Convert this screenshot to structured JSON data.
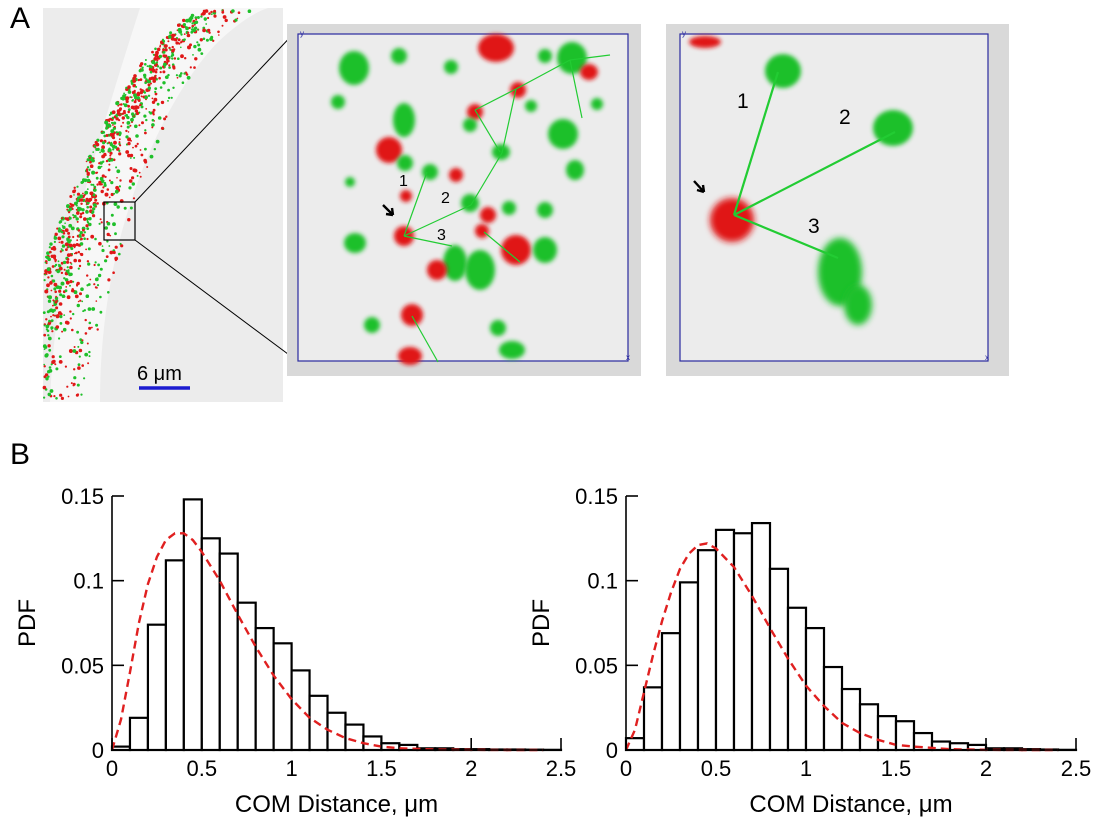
{
  "panels": {
    "a_label": "A",
    "b_label": "B"
  },
  "micrograph": {
    "scale_bar_label": "6 μm",
    "inset1_numbers": [
      "1",
      "2",
      "3"
    ],
    "inset2_numbers": [
      "1",
      "2",
      "3"
    ],
    "colors": {
      "red": "#e01818",
      "green": "#1fc02a",
      "link": "#22cc33",
      "frame": "#2a2aa0",
      "scale_bar": "#1a1ad0"
    }
  },
  "chart_data": [
    {
      "type": "bar",
      "xlabel": "COM Distance, μm",
      "ylabel": "PDF",
      "xlim": [
        0,
        2.5
      ],
      "ylim": [
        0,
        0.15
      ],
      "xticks": [
        "0",
        "0.5",
        "1",
        "1.5",
        "2",
        "2.5"
      ],
      "yticks": [
        "0",
        "0.05",
        "0.1",
        "0.15"
      ],
      "bin_width": 0.1,
      "bin_starts": [
        0,
        0.1,
        0.2,
        0.3,
        0.4,
        0.5,
        0.6,
        0.7,
        0.8,
        0.9,
        1.0,
        1.1,
        1.2,
        1.3,
        1.4,
        1.5,
        1.6,
        1.7,
        1.8,
        1.9,
        2.0,
        2.1,
        2.2,
        2.3,
        2.4
      ],
      "values": [
        0.002,
        0.019,
        0.074,
        0.112,
        0.148,
        0.125,
        0.116,
        0.087,
        0.072,
        0.063,
        0.047,
        0.032,
        0.022,
        0.015,
        0.008,
        0.004,
        0.003,
        0.001,
        0.001,
        0.0005,
        0.0005,
        0.0003,
        0.0003,
        0.0002,
        0.0001
      ],
      "fit": {
        "style": "red dashed",
        "color": "#e02020",
        "x": [
          0,
          0.05,
          0.1,
          0.15,
          0.2,
          0.25,
          0.3,
          0.35,
          0.4,
          0.45,
          0.5,
          0.6,
          0.7,
          0.8,
          0.9,
          1.0,
          1.1,
          1.2,
          1.3,
          1.4,
          1.5,
          1.6,
          1.8,
          2.0,
          2.2,
          2.4
        ],
        "y": [
          0.0,
          0.018,
          0.046,
          0.075,
          0.098,
          0.114,
          0.124,
          0.128,
          0.128,
          0.124,
          0.117,
          0.1,
          0.08,
          0.061,
          0.044,
          0.03,
          0.019,
          0.012,
          0.007,
          0.004,
          0.002,
          0.001,
          0.0003,
          0.0001,
          0.0,
          0.0
        ]
      }
    },
    {
      "type": "bar",
      "xlabel": "COM Distance, μm",
      "ylabel": "PDF",
      "xlim": [
        0,
        2.5
      ],
      "ylim": [
        0,
        0.15
      ],
      "xticks": [
        "0",
        "0.5",
        "1",
        "1.5",
        "2",
        "2.5"
      ],
      "yticks": [
        "0",
        "0.05",
        "0.1",
        "0.15"
      ],
      "bin_width": 0.1,
      "bin_starts": [
        0,
        0.1,
        0.2,
        0.3,
        0.4,
        0.5,
        0.6,
        0.7,
        0.8,
        0.9,
        1.0,
        1.1,
        1.2,
        1.3,
        1.4,
        1.5,
        1.6,
        1.7,
        1.8,
        1.9,
        2.0,
        2.1,
        2.2,
        2.3,
        2.4
      ],
      "values": [
        0.007,
        0.037,
        0.069,
        0.099,
        0.118,
        0.13,
        0.128,
        0.134,
        0.107,
        0.084,
        0.072,
        0.049,
        0.036,
        0.027,
        0.02,
        0.017,
        0.01,
        0.005,
        0.004,
        0.003,
        0.001,
        0.001,
        0.0005,
        0.0003,
        0.0001
      ],
      "fit": {
        "style": "red dashed",
        "color": "#e02020",
        "x": [
          0,
          0.05,
          0.1,
          0.15,
          0.2,
          0.25,
          0.3,
          0.35,
          0.4,
          0.45,
          0.5,
          0.6,
          0.7,
          0.8,
          0.9,
          1.0,
          1.1,
          1.2,
          1.3,
          1.4,
          1.5,
          1.6,
          1.8,
          2.0,
          2.2,
          2.4
        ],
        "y": [
          0.0,
          0.012,
          0.034,
          0.056,
          0.076,
          0.093,
          0.107,
          0.116,
          0.121,
          0.122,
          0.119,
          0.108,
          0.091,
          0.072,
          0.054,
          0.038,
          0.026,
          0.016,
          0.01,
          0.006,
          0.003,
          0.002,
          0.0005,
          0.0001,
          0.0,
          0.0
        ]
      }
    }
  ]
}
